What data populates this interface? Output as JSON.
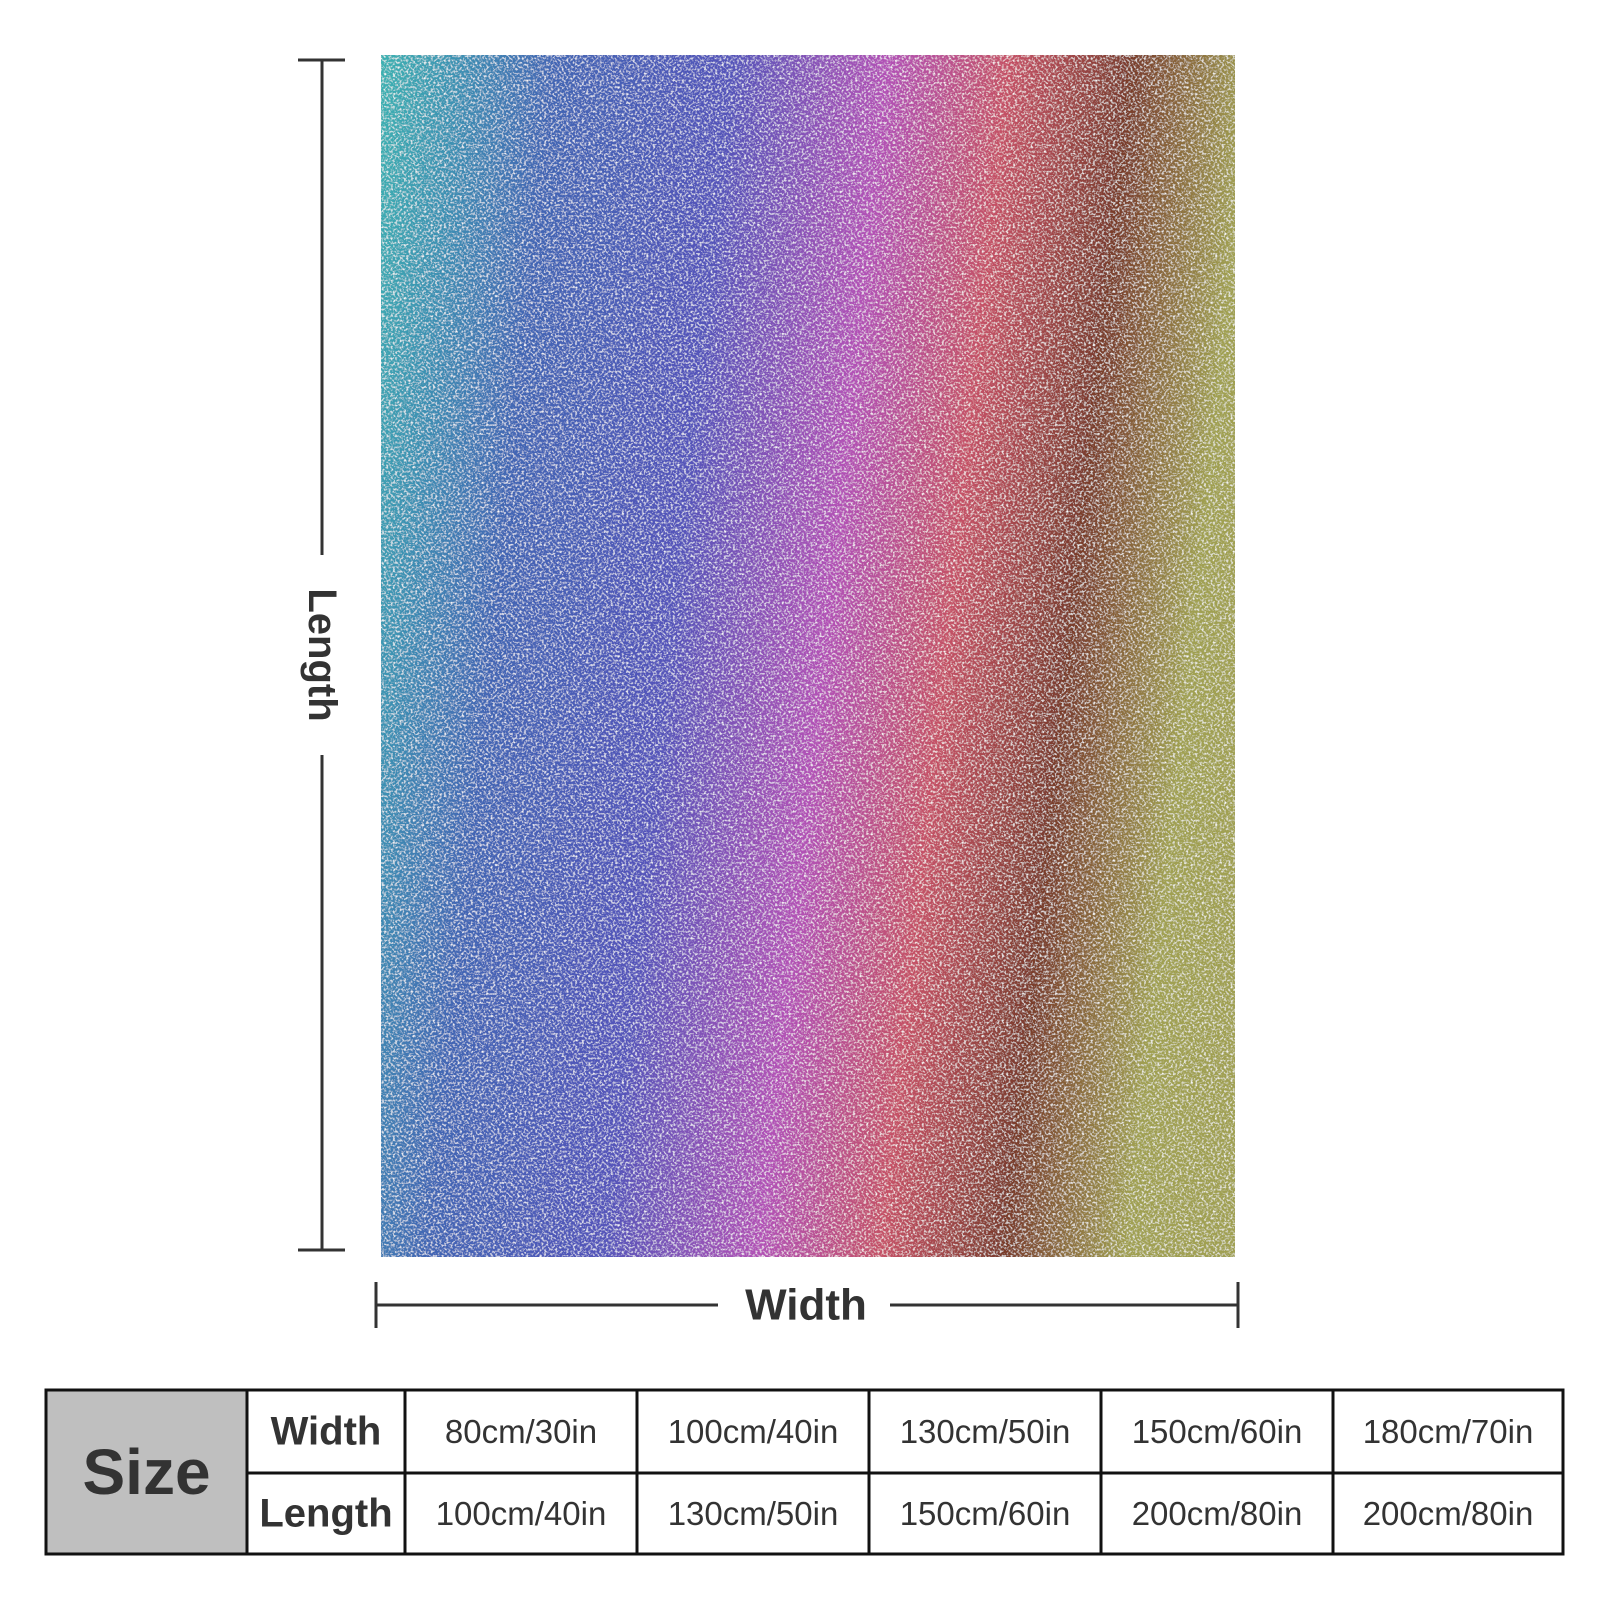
{
  "dimensions": {
    "length_label": "Length",
    "width_label": "Width"
  },
  "table": {
    "title": "Size",
    "rows": [
      {
        "label": "Width",
        "cells": [
          "80cm/30in",
          "100cm/40in",
          "130cm/50in",
          "150cm/60in",
          "180cm/70in"
        ]
      },
      {
        "label": "Length",
        "cells": [
          "100cm/40in",
          "130cm/50in",
          "150cm/60in",
          "200cm/80in",
          "200cm/80in"
        ]
      }
    ]
  }
}
